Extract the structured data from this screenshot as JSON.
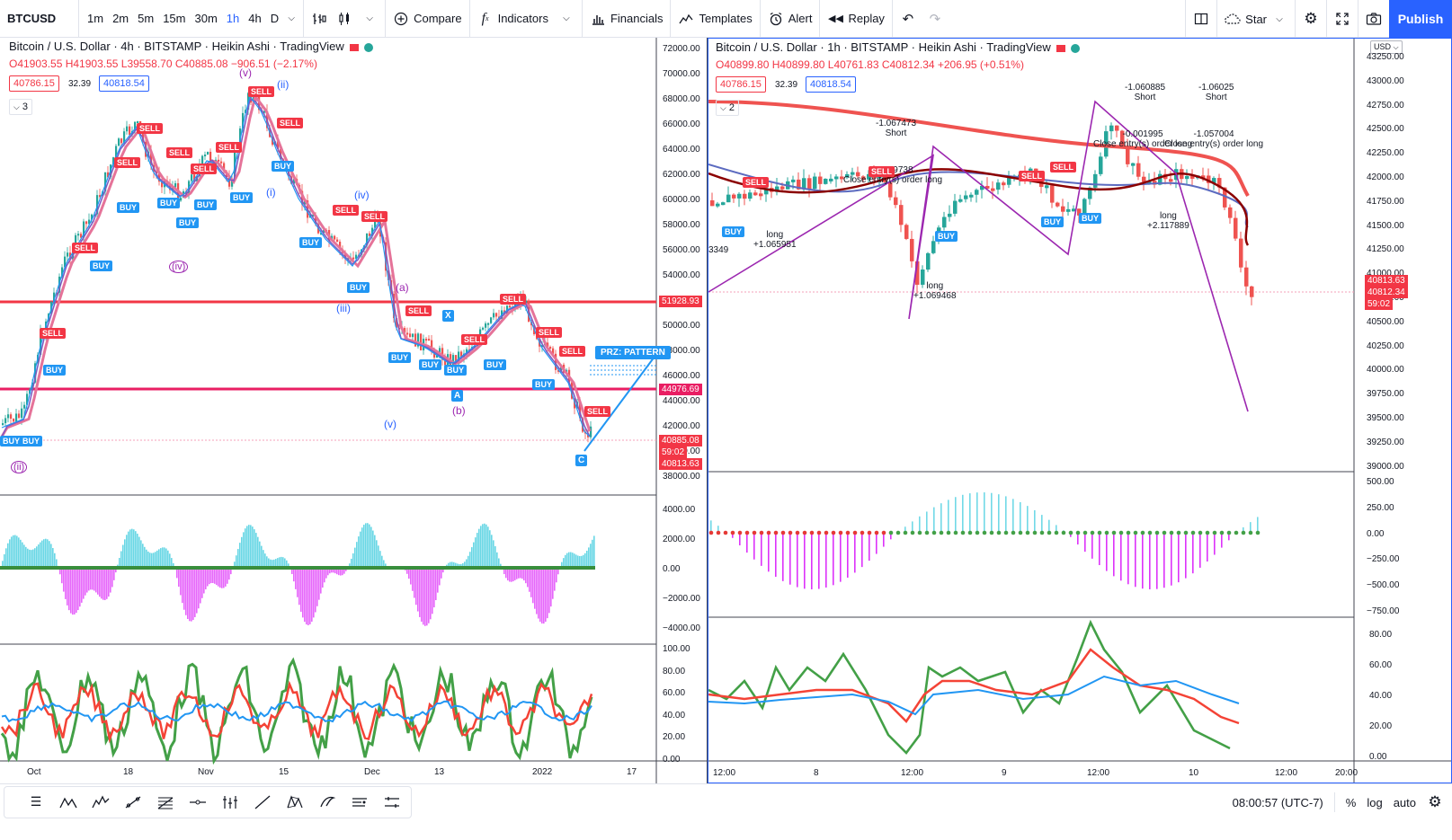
{
  "toolbar": {
    "symbol": "BTCUSD",
    "timeframes": [
      "1m",
      "2m",
      "5m",
      "15m",
      "30m",
      "1h",
      "4h",
      "D"
    ],
    "active_timeframe": "1h",
    "compare": "Compare",
    "indicators": "Indicators",
    "financials": "Financials",
    "templates": "Templates",
    "alert": "Alert",
    "replay": "Replay",
    "star": "Star",
    "publish": "Publish"
  },
  "left_chart": {
    "title": "Bitcoin / U.S. Dollar · 4h · BITSTAMP · Heikin Ashi · TradingView",
    "ohlc": "O41903.55 H41903.55 L39558.70 C40885.08 −906.51 (−2.17%)",
    "bid": "40786.15",
    "spread": "32.39",
    "ask": "40818.54",
    "study_count": "3",
    "price_axis": [
      "72000.00",
      "70000.00",
      "68000.00",
      "66000.00",
      "64000.00",
      "62000.00",
      "60000.00",
      "58000.00",
      "56000.00",
      "54000.00",
      "52000.00",
      "50000.00",
      "48000.00",
      "46000.00",
      "44000.00",
      "42000.00",
      "40000.00",
      "38000.00"
    ],
    "tag_red": "51928.93",
    "tag_pink": "44976.69",
    "tag_last": "40885.08",
    "tag_countdown": "59:02",
    "tag_low": "40813.63",
    "prz_label": "PRZ: PATTERN",
    "osc_axis": [
      "4000.00",
      "2000.00",
      "0.00",
      "−2000.00",
      "−4000.00"
    ],
    "rsi_axis": [
      "100.00",
      "80.00",
      "60.00",
      "40.00",
      "20.00",
      "0.00"
    ],
    "time_axis": [
      "Oct",
      "18",
      "Nov",
      "15",
      "Dec",
      "13",
      "2022",
      "17"
    ],
    "waves": [
      "(v)",
      "(ii)",
      "(i)",
      "(iv)",
      "(iii)",
      "(v)",
      "(b)",
      "(ii)",
      "(iv)",
      "(a)"
    ],
    "signal_sell": "SELL",
    "signal_buy": "BUY",
    "label_x": "X",
    "label_a": "A",
    "label_c": "C"
  },
  "right_chart": {
    "title": "Bitcoin / U.S. Dollar · 1h · BITSTAMP · Heikin Ashi · TradingView",
    "ohlc": "O40899.80 H40899.80 L40761.83 C40812.34 +206.95 (+0.51%)",
    "bid": "40786.15",
    "spread": "32.39",
    "ask": "40818.54",
    "study_count": "2",
    "currency": "USD",
    "price_axis": [
      "43250.00",
      "43000.00",
      "42750.00",
      "42500.00",
      "42250.00",
      "42000.00",
      "41750.00",
      "41500.00",
      "41250.00",
      "41000.00",
      "40750.00",
      "40500.00",
      "40250.00",
      "40000.00",
      "39750.00",
      "39500.00",
      "39250.00",
      "39000.00"
    ],
    "tag_a": "40813.63",
    "tag_b": "40812.34",
    "tag_countdown": "59:02",
    "osc_axis": [
      "500.00",
      "250.00",
      "0.00",
      "−250.00",
      "−500.00",
      "−750.00"
    ],
    "rsi_axis": [
      "80.00",
      "60.00",
      "40.00",
      "20.00",
      "0.00"
    ],
    "time_axis": [
      "12:00",
      "8",
      "12:00",
      "9",
      "12:00",
      "10",
      "12:00",
      "20:00"
    ],
    "notes": {
      "short1": "-1.067473",
      "short_label": "Short",
      "short2": "-1.060885",
      "short3": "-1.06025",
      "close1": "-1.059738",
      "close_text": "Close entry(s) order long",
      "close2": "-0.001995",
      "close3": "-1.057004",
      "long1": "+1.065951",
      "long_label": "long",
      "long2": "+1.069468",
      "long3": "+2.117889",
      "left_val": "3349"
    }
  },
  "bottombar": {
    "clock": "08:00:57 (UTC-7)",
    "percent": "%",
    "log": "log",
    "auto": "auto"
  },
  "colors": {
    "accent": "#2962ff",
    "sell": "#f23645",
    "buy": "#2196f3",
    "teal": "#26a69a"
  }
}
